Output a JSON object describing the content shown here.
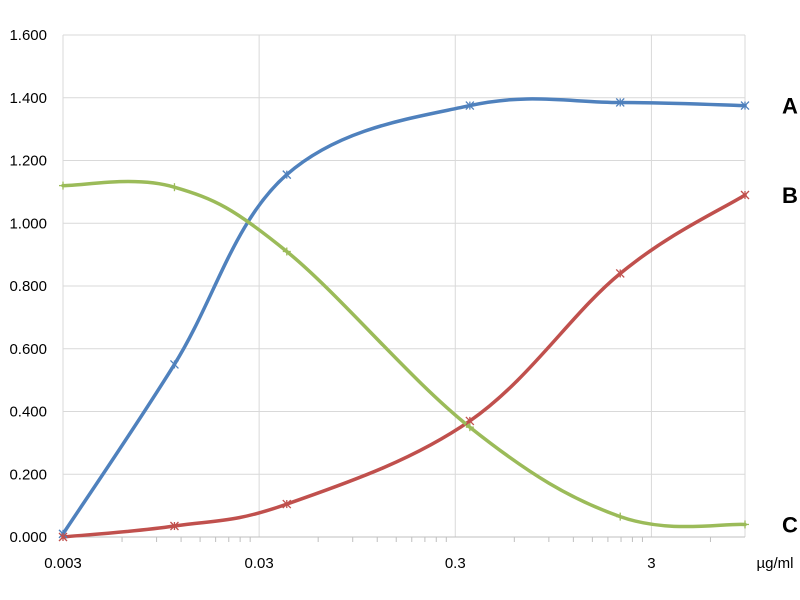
{
  "chart_data": {
    "type": "line",
    "title": "",
    "xlabel": "µg/ml",
    "ylabel": "",
    "x_scale": "log",
    "xlim": [
      0.003,
      9.0
    ],
    "ylim": [
      0,
      1.6
    ],
    "x_ticks": [
      0.003,
      0.03,
      0.3,
      3
    ],
    "x_tick_labels": [
      "0.003",
      "0.03",
      "0.3",
      "3"
    ],
    "y_ticks": [
      0,
      0.2,
      0.4,
      0.6,
      0.8,
      1.0,
      1.2,
      1.4,
      1.6
    ],
    "y_tick_labels": [
      "0.000",
      "0.200",
      "0.400",
      "0.600",
      "0.800",
      "1.000",
      "1.200",
      "1.400",
      "1.600"
    ],
    "grid": true,
    "legend": "none",
    "series": [
      {
        "name": "A",
        "color": "#4F81BD",
        "marker": "x",
        "x": [
          0.003,
          0.0111,
          0.0415,
          0.356,
          2.08,
          9.0
        ],
        "y": [
          0.01,
          0.55,
          1.155,
          1.375,
          1.385,
          1.375
        ]
      },
      {
        "name": "B",
        "color": "#C0504D",
        "marker": "x",
        "x": [
          0.003,
          0.0111,
          0.0415,
          0.356,
          2.08,
          9.0
        ],
        "y": [
          0.0,
          0.035,
          0.105,
          0.37,
          0.84,
          1.09
        ]
      },
      {
        "name": "C",
        "color": "#9BBB59",
        "marker": "+",
        "x": [
          0.003,
          0.0111,
          0.0415,
          0.356,
          2.08,
          9.0
        ],
        "y": [
          1.12,
          1.115,
          0.91,
          0.35,
          0.065,
          0.04
        ]
      }
    ]
  }
}
